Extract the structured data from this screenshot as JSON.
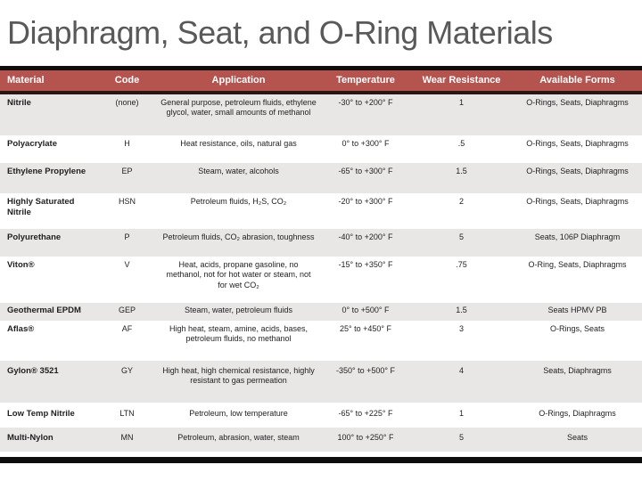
{
  "title": "Diaphragm, Seat, and O-Ring Materials",
  "colors": {
    "header_bg": "#b5534f",
    "band": "#e9e6e6",
    "title_color": "#595959",
    "top_rule": "#0d0d0d",
    "under_rule": "#2b1414",
    "bottom_bar": "#0d0d0d",
    "text": "#1f1f1f"
  },
  "table": {
    "columns": [
      "Material",
      "Code",
      "Application",
      "Temperature",
      "Wear Resistance",
      "Available Forms"
    ],
    "rows": [
      {
        "material": "Nitrile",
        "code": "(none)",
        "application": "General purpose, petroleum fluids, ethylene  glycol, water, small amounts of methanol",
        "temperature": "-30° to +200° F",
        "wear_resistance": "1",
        "available_forms": "O-Rings, Seats, Diaphragms"
      },
      {
        "material": "Polyacrylate",
        "code": "H",
        "application": "Heat resistance, oils, natural gas",
        "temperature": "0° to +300° F",
        "wear_resistance": ".5",
        "available_forms": "O-Rings, Seats, Diaphragms"
      },
      {
        "material": "Ethylene Propylene",
        "code": "EP",
        "application": "Steam, water, alcohols",
        "temperature": "-65° to +300° F",
        "wear_resistance": "1.5",
        "available_forms": "O-Rings, Seats, Diaphragms"
      },
      {
        "material": "Highly Saturated Nitrile",
        "code": "HSN",
        "application": "Petroleum fluids, H₂S, CO₂",
        "temperature": "-20° to +300° F",
        "wear_resistance": "2",
        "available_forms": "O-Rings, Seats, Diaphragms"
      },
      {
        "material": "Polyurethane",
        "code": "P",
        "application": "Petroleum fluids, CO₂ abrasion, toughness",
        "temperature": "-40° to +200° F",
        "wear_resistance": "5",
        "available_forms": "Seats, 106P Diaphragm"
      },
      {
        "material": "Viton®",
        "code": "V",
        "application": "Heat, acids, propane gasoline, no methanol, not for hot water or steam, not for wet CO₂",
        "temperature": "-15° to +350° F",
        "wear_resistance": ".75",
        "available_forms": "O-Ring, Seats, Diaphragms"
      },
      {
        "material": "Geothermal EPDM",
        "code": "GEP",
        "application": "Steam, water, petroleum fluids",
        "temperature": "0° to +500° F",
        "wear_resistance": "1.5",
        "available_forms": "Seats HPMV PB"
      },
      {
        "material": "Aflas®",
        "code": "AF",
        "application": "High heat, steam, amine, acids, bases, petroleum fluids, no methanol",
        "temperature": "25° to +450° F",
        "wear_resistance": "3",
        "available_forms": "O-Rings, Seats"
      },
      {
        "material": "Gylon® 3521",
        "code": "GY",
        "application": "High heat, high chemical resistance, highly resistant to gas permeation",
        "temperature": "-350° to +500° F",
        "wear_resistance": "4",
        "available_forms": "Seats, Diaphragms"
      },
      {
        "material": "Low Temp Nitrile",
        "code": "LTN",
        "application": "Petroleum, low temperature",
        "temperature": "-65° to +225° F",
        "wear_resistance": "1",
        "available_forms": "O-Rings, Diaphragms"
      },
      {
        "material": "Multi-Nylon",
        "code": "MN",
        "application": "Petroleum, abrasion, water, steam",
        "temperature": "100° to +250° F",
        "wear_resistance": "5",
        "available_forms": "Seats"
      }
    ]
  }
}
